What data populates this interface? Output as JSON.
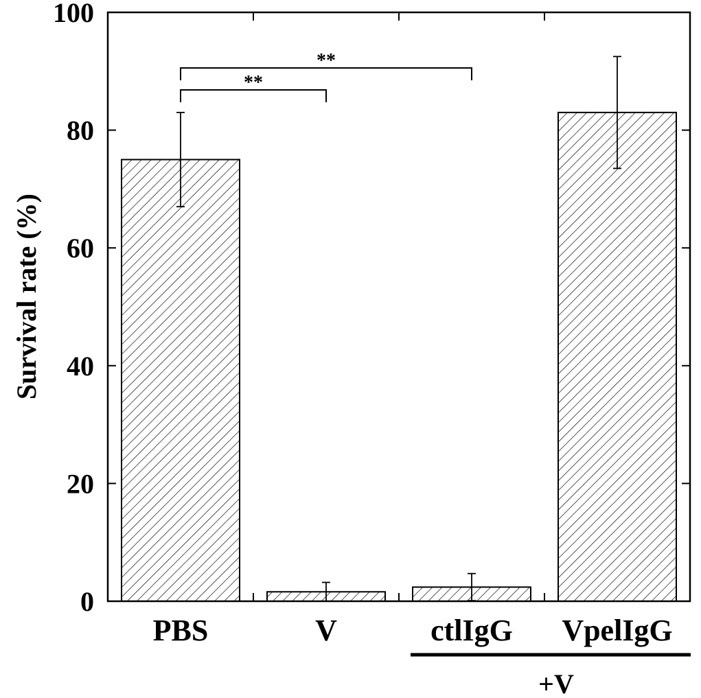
{
  "chart_data": {
    "type": "bar",
    "categories": [
      "PBS",
      "V",
      "ctlIgG",
      "VpelIgG"
    ],
    "values": [
      75.0,
      1.6,
      2.4,
      83.0
    ],
    "errors": [
      8.0,
      1.6,
      2.3,
      9.5
    ],
    "title": "",
    "xlabel": "",
    "ylabel": "Survival rate (%)",
    "ylim": [
      0,
      100
    ],
    "yticks": [
      0,
      20,
      40,
      60,
      80,
      100
    ],
    "group_label": "+V",
    "group_members": [
      "ctlIgG",
      "VpelIgG"
    ],
    "bar_fill": "hatched",
    "grid": false,
    "significance": [
      {
        "from": "PBS",
        "to": "V",
        "label": "**"
      },
      {
        "from": "PBS",
        "to": "ctlIgG",
        "label": "**"
      }
    ],
    "colors": {
      "stroke": "#000000",
      "background": "#ffffff"
    }
  }
}
